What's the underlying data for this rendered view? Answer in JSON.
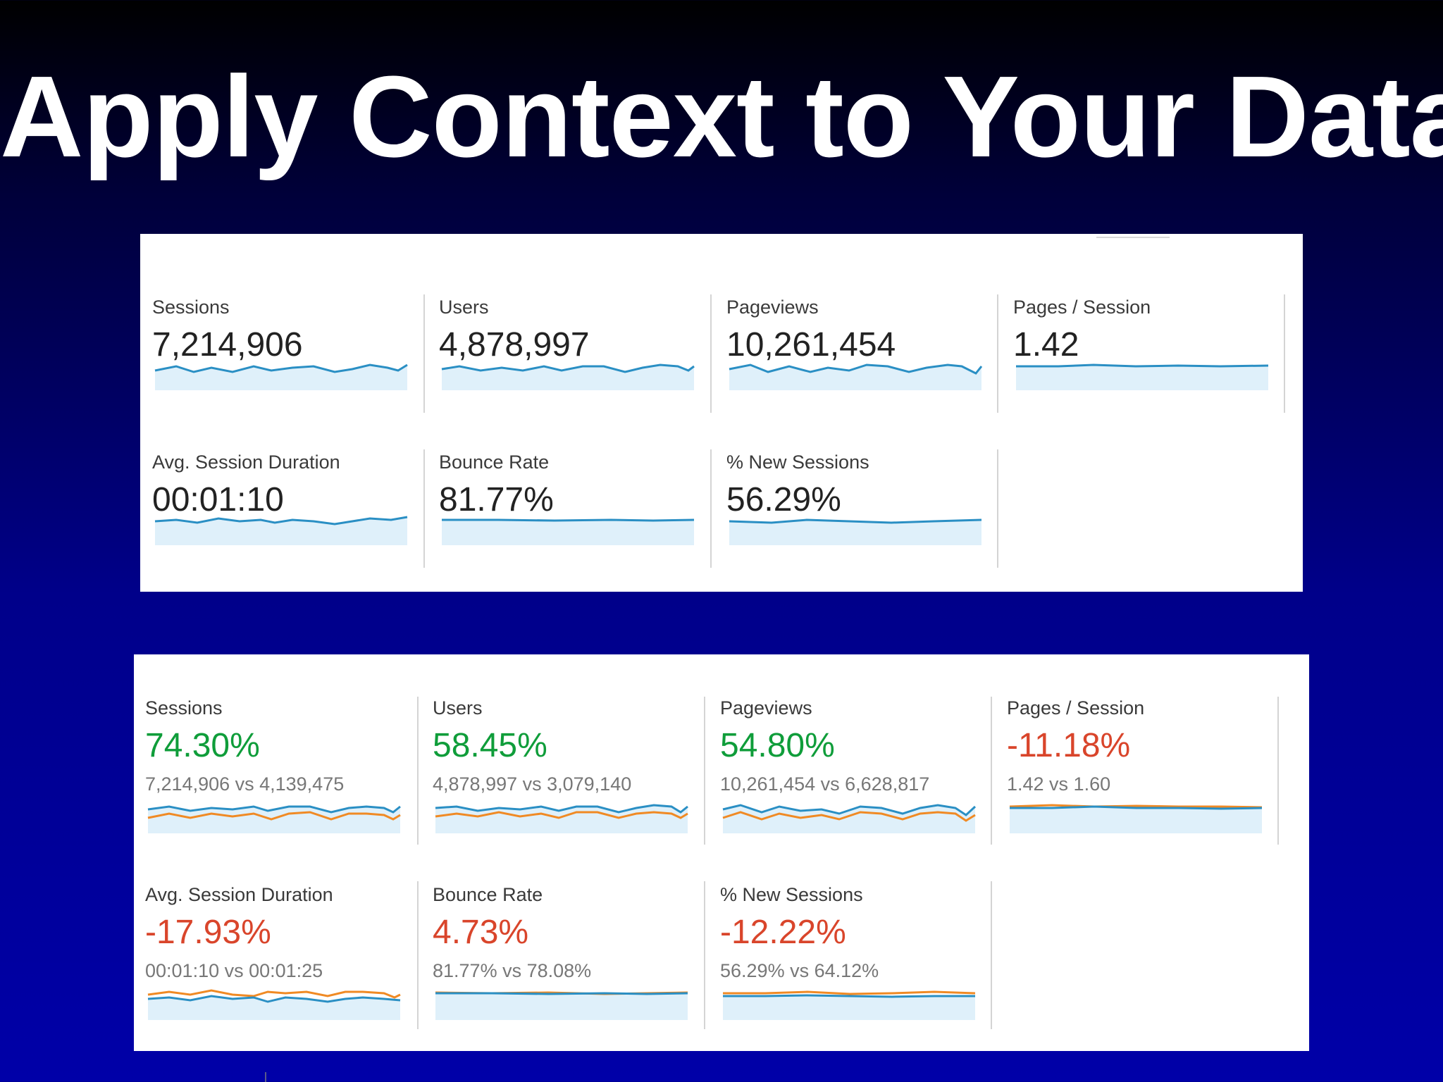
{
  "title": "Apply Context to Your Data",
  "colors": {
    "primary_line": "#2a8fc4",
    "primary_fill": "#dff0fa",
    "compare_line": "#f08a24",
    "positive": "#0f9d3a",
    "negative": "#d9452b"
  },
  "overview": {
    "tiles": [
      {
        "label": "Sessions",
        "value": "7,214,906"
      },
      {
        "label": "Users",
        "value": "4,878,997"
      },
      {
        "label": "Pageviews",
        "value": "10,261,454"
      },
      {
        "label": "Pages / Session",
        "value": "1.42"
      },
      {
        "label": "Avg. Session Duration",
        "value": "00:01:10"
      },
      {
        "label": "Bounce Rate",
        "value": "81.77%"
      },
      {
        "label": "% New Sessions",
        "value": "56.29%"
      }
    ]
  },
  "comparison": {
    "tiles": [
      {
        "label": "Sessions",
        "change": "74.30%",
        "trend": "positive",
        "compare": "7,214,906 vs 4,139,475"
      },
      {
        "label": "Users",
        "change": "58.45%",
        "trend": "positive",
        "compare": "4,878,997 vs 3,079,140"
      },
      {
        "label": "Pageviews",
        "change": "54.80%",
        "trend": "positive",
        "compare": "10,261,454 vs 6,628,817"
      },
      {
        "label": "Pages / Session",
        "change": "-11.18%",
        "trend": "negative",
        "compare": "1.42 vs 1.60"
      },
      {
        "label": "Avg. Session Duration",
        "change": "-17.93%",
        "trend": "negative",
        "compare": "00:01:10 vs 00:01:25"
      },
      {
        "label": "Bounce Rate",
        "change": "4.73%",
        "trend": "positive",
        "compare": "81.77% vs 78.08%"
      },
      {
        "label": "% New Sessions",
        "change": "-12.22%",
        "trend": "negative",
        "compare": "56.29% vs 64.12%"
      }
    ]
  }
}
